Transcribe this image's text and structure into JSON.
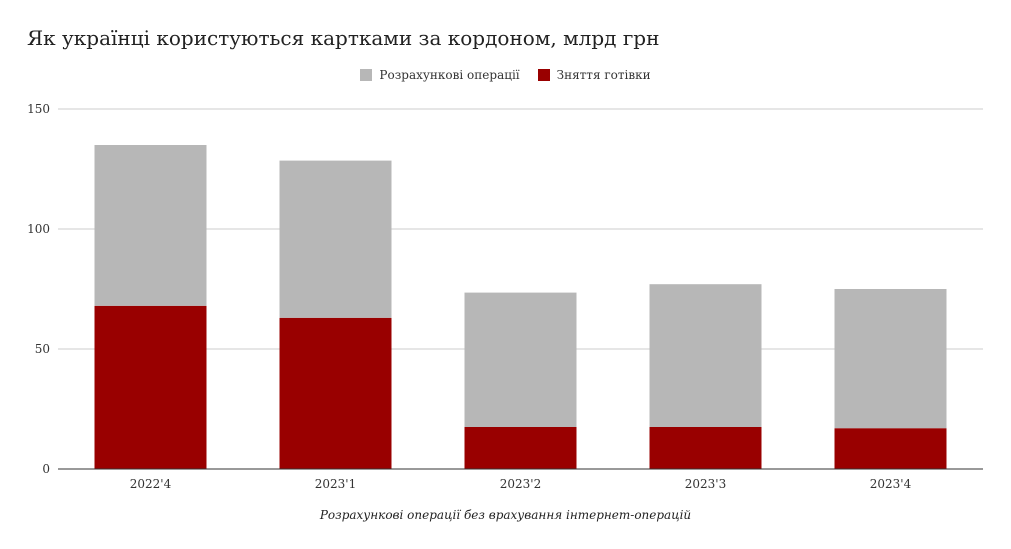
{
  "chart_data": {
    "type": "bar",
    "stacked": true,
    "title": "Як українці користуються картками за кордоном, млрд грн",
    "xlabel": "Розрахункові операції без врахування інтернет-операцій",
    "ylabel": "",
    "categories": [
      "2022'4",
      "2023'1",
      "2023'2",
      "2023'3",
      "2023'4"
    ],
    "series": [
      {
        "name": "Зняття готівки",
        "color": "#990000",
        "values": [
          68,
          63,
          17.5,
          17.5,
          17
        ]
      },
      {
        "name": "Розрахункові операції",
        "color": "#b7b7b7",
        "values": [
          67,
          65.5,
          56,
          59.5,
          58
        ]
      }
    ],
    "legend_order": [
      "Розрахункові операції",
      "Зняття готівки"
    ],
    "ylim": [
      0,
      150
    ],
    "yticks": [
      0,
      50,
      100,
      150
    ],
    "grid": true,
    "legend_position": "top-center"
  }
}
